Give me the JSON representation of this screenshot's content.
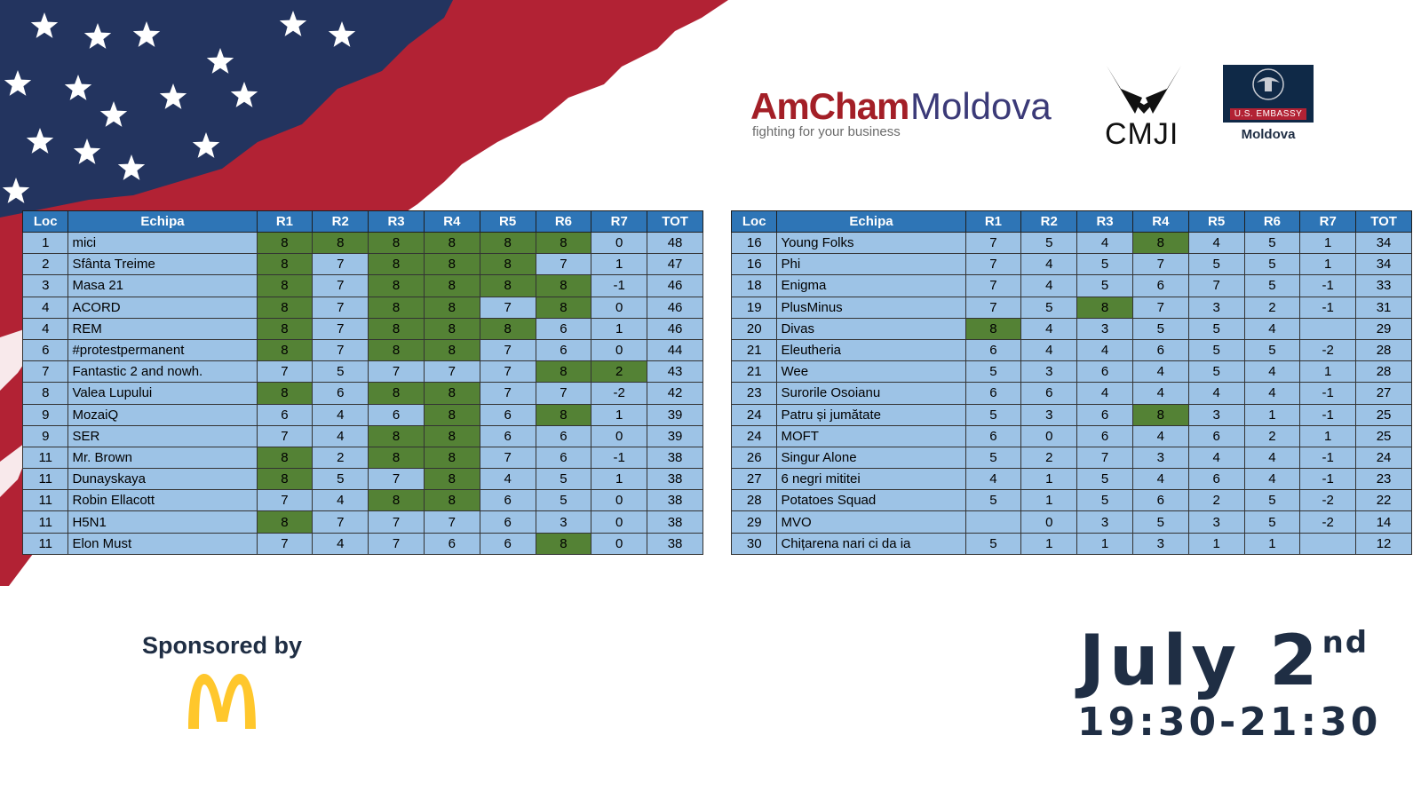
{
  "table_headers": [
    "Loc",
    "Echipa",
    "R1",
    "R2",
    "R3",
    "R4",
    "R5",
    "R6",
    "R7",
    "TOT"
  ],
  "left_table": [
    {
      "loc": "1",
      "team": "mici",
      "r": [
        "8",
        "8",
        "8",
        "8",
        "8",
        "8",
        "0"
      ],
      "tot": "48",
      "hl": [
        0,
        1,
        2,
        3,
        4,
        5
      ]
    },
    {
      "loc": "2",
      "team": "Sfânta Treime",
      "r": [
        "8",
        "7",
        "8",
        "8",
        "8",
        "7",
        "1"
      ],
      "tot": "47",
      "hl": [
        0,
        2,
        3,
        4
      ]
    },
    {
      "loc": "3",
      "team": "Masa 21",
      "r": [
        "8",
        "7",
        "8",
        "8",
        "8",
        "8",
        "-1"
      ],
      "tot": "46",
      "hl": [
        0,
        2,
        3,
        4,
        5
      ]
    },
    {
      "loc": "4",
      "team": "ACORD",
      "r": [
        "8",
        "7",
        "8",
        "8",
        "7",
        "8",
        "0"
      ],
      "tot": "46",
      "hl": [
        0,
        2,
        3,
        5
      ]
    },
    {
      "loc": "4",
      "team": "REM",
      "r": [
        "8",
        "7",
        "8",
        "8",
        "8",
        "6",
        "1"
      ],
      "tot": "46",
      "hl": [
        0,
        2,
        3,
        4
      ]
    },
    {
      "loc": "6",
      "team": "#protestpermanent",
      "r": [
        "8",
        "7",
        "8",
        "8",
        "7",
        "6",
        "0"
      ],
      "tot": "44",
      "hl": [
        0,
        2,
        3
      ]
    },
    {
      "loc": "7",
      "team": "Fantastic 2 and nowh.",
      "r": [
        "7",
        "5",
        "7",
        "7",
        "7",
        "8",
        "2"
      ],
      "tot": "43",
      "hl": [
        5,
        6
      ]
    },
    {
      "loc": "8",
      "team": "Valea Lupului",
      "r": [
        "8",
        "6",
        "8",
        "8",
        "7",
        "7",
        "-2"
      ],
      "tot": "42",
      "hl": [
        0,
        2,
        3
      ]
    },
    {
      "loc": "9",
      "team": "MozaiQ",
      "r": [
        "6",
        "4",
        "6",
        "8",
        "6",
        "8",
        "1"
      ],
      "tot": "39",
      "hl": [
        3,
        5
      ]
    },
    {
      "loc": "9",
      "team": "SER",
      "r": [
        "7",
        "4",
        "8",
        "8",
        "6",
        "6",
        "0"
      ],
      "tot": "39",
      "hl": [
        2,
        3
      ]
    },
    {
      "loc": "11",
      "team": "Mr. Brown",
      "r": [
        "8",
        "2",
        "8",
        "8",
        "7",
        "6",
        "-1"
      ],
      "tot": "38",
      "hl": [
        0,
        2,
        3
      ]
    },
    {
      "loc": "11",
      "team": "Dunayskaya",
      "r": [
        "8",
        "5",
        "7",
        "8",
        "4",
        "5",
        "1"
      ],
      "tot": "38",
      "hl": [
        0,
        3
      ]
    },
    {
      "loc": "11",
      "team": "Robin Ellacott",
      "r": [
        "7",
        "4",
        "8",
        "8",
        "6",
        "5",
        "0"
      ],
      "tot": "38",
      "hl": [
        2,
        3
      ]
    },
    {
      "loc": "11",
      "team": "H5N1",
      "r": [
        "8",
        "7",
        "7",
        "7",
        "6",
        "3",
        "0"
      ],
      "tot": "38",
      "hl": [
        0
      ]
    },
    {
      "loc": "11",
      "team": "Elon Must",
      "r": [
        "7",
        "4",
        "7",
        "6",
        "6",
        "8",
        "0"
      ],
      "tot": "38",
      "hl": [
        5
      ]
    }
  ],
  "right_table": [
    {
      "loc": "16",
      "team": "Young Folks",
      "r": [
        "7",
        "5",
        "4",
        "8",
        "4",
        "5",
        "1"
      ],
      "tot": "34",
      "hl": [
        3
      ]
    },
    {
      "loc": "16",
      "team": "Phi",
      "r": [
        "7",
        "4",
        "5",
        "7",
        "5",
        "5",
        "1"
      ],
      "tot": "34",
      "hl": []
    },
    {
      "loc": "18",
      "team": "Enigma",
      "r": [
        "7",
        "4",
        "5",
        "6",
        "7",
        "5",
        "-1"
      ],
      "tot": "33",
      "hl": []
    },
    {
      "loc": "19",
      "team": "PlusMinus",
      "r": [
        "7",
        "5",
        "8",
        "7",
        "3",
        "2",
        "-1"
      ],
      "tot": "31",
      "hl": [
        2
      ]
    },
    {
      "loc": "20",
      "team": "Divas",
      "r": [
        "8",
        "4",
        "3",
        "5",
        "5",
        "4",
        ""
      ],
      "tot": "29",
      "hl": [
        0
      ]
    },
    {
      "loc": "21",
      "team": "Eleutheria",
      "r": [
        "6",
        "4",
        "4",
        "6",
        "5",
        "5",
        "-2"
      ],
      "tot": "28",
      "hl": []
    },
    {
      "loc": "21",
      "team": "Wee",
      "r": [
        "5",
        "3",
        "6",
        "4",
        "5",
        "4",
        "1"
      ],
      "tot": "28",
      "hl": []
    },
    {
      "loc": "23",
      "team": "Surorile Osoianu",
      "r": [
        "6",
        "6",
        "4",
        "4",
        "4",
        "4",
        "-1"
      ],
      "tot": "27",
      "hl": []
    },
    {
      "loc": "24",
      "team": "Patru și jumătate",
      "r": [
        "5",
        "3",
        "6",
        "8",
        "3",
        "1",
        "-1"
      ],
      "tot": "25",
      "hl": [
        3
      ]
    },
    {
      "loc": "24",
      "team": "MOFT",
      "r": [
        "6",
        "0",
        "6",
        "4",
        "6",
        "2",
        "1"
      ],
      "tot": "25",
      "hl": []
    },
    {
      "loc": "26",
      "team": "Singur Alone",
      "r": [
        "5",
        "2",
        "7",
        "3",
        "4",
        "4",
        "-1"
      ],
      "tot": "24",
      "hl": []
    },
    {
      "loc": "27",
      "team": "6 negri mititei",
      "r": [
        "4",
        "1",
        "5",
        "4",
        "6",
        "4",
        "-1"
      ],
      "tot": "23",
      "hl": []
    },
    {
      "loc": "28",
      "team": "Potatoes Squad",
      "r": [
        "5",
        "1",
        "5",
        "6",
        "2",
        "5",
        "-2"
      ],
      "tot": "22",
      "hl": []
    },
    {
      "loc": "29",
      "team": "MVO",
      "r": [
        "",
        "0",
        "3",
        "5",
        "3",
        "5",
        "-2"
      ],
      "tot": "14",
      "hl": []
    },
    {
      "loc": "30",
      "team": "Chițarena nari ci da ia",
      "r": [
        "5",
        "1",
        "1",
        "3",
        "1",
        "1",
        ""
      ],
      "tot": "12",
      "hl": []
    }
  ],
  "logos": {
    "amcham_part1": "AmCham",
    "amcham_part2": "Moldova",
    "amcham_tagline": "fighting for your business",
    "cmji": "CMJI",
    "embassy_banner": "U.S. EMBASSY",
    "embassy_country": "Moldova"
  },
  "sponsor": {
    "label": "Sponsored by",
    "logo_icon": "mcdonalds-arches-icon"
  },
  "event": {
    "date": "July 2",
    "date_suffix": "nd",
    "time": "19:30-21:30"
  },
  "colors": {
    "header_blue": "#2e75b6",
    "cell_blue": "#9dc3e6",
    "highlight_green": "#548235",
    "flag_red": "#b22234",
    "flag_navy": "#23345f",
    "text_navy": "#1f2e44",
    "mcd_yellow": "#ffc72c"
  }
}
